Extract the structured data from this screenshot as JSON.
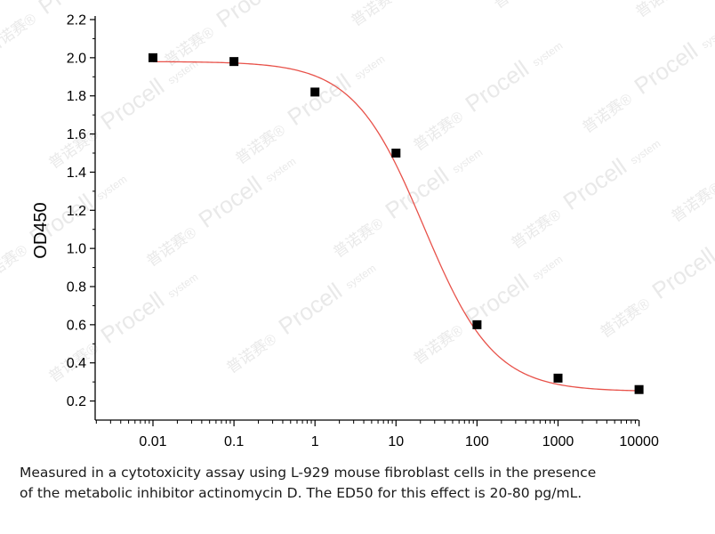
{
  "chart_data": {
    "type": "scatter",
    "title": "",
    "xlabel": "",
    "ylabel": "OD450",
    "x_scale": "log",
    "xlim": [
      0.003,
      10000
    ],
    "ylim": [
      0.1,
      2.2
    ],
    "x_ticks": [
      0.01,
      0.1,
      1,
      10,
      100,
      1000,
      10000
    ],
    "x_tick_labels": [
      "0.01",
      "0.1",
      "1",
      "10",
      "100",
      "1000",
      "10000"
    ],
    "y_ticks": [
      0.2,
      0.4,
      0.6,
      0.8,
      1.0,
      1.2,
      1.4,
      1.6,
      1.8,
      2.0,
      2.2
    ],
    "y_tick_labels": [
      "0.2",
      "0.4",
      "0.6",
      "0.8",
      "1.0",
      "1.2",
      "1.4",
      "1.6",
      "1.8",
      "2.0",
      "2.2"
    ],
    "grid": false,
    "series": [
      {
        "kind": "points",
        "marker": "square",
        "color": "#000000",
        "x": [
          0.01,
          0.1,
          1,
          10,
          100,
          1000,
          10000
        ],
        "y": [
          2.0,
          1.98,
          1.82,
          1.5,
          0.6,
          0.32,
          0.26
        ]
      },
      {
        "kind": "fit-curve",
        "model": "4PL",
        "color": "#e8524a",
        "top": 1.98,
        "bottom": 0.25,
        "ec50": 22,
        "hill": 1.0
      }
    ]
  },
  "caption": {
    "line1": "Measured in a cytotoxicity assay using L-929 mouse fibroblast cells in the presence",
    "line2": "of the metabolic inhibitor actinomycin D. The ED50 for this effect is 20-80 pg/mL."
  },
  "watermark": {
    "brand": "Procell",
    "suffix": "system",
    "cjk": "普诺赛®"
  }
}
